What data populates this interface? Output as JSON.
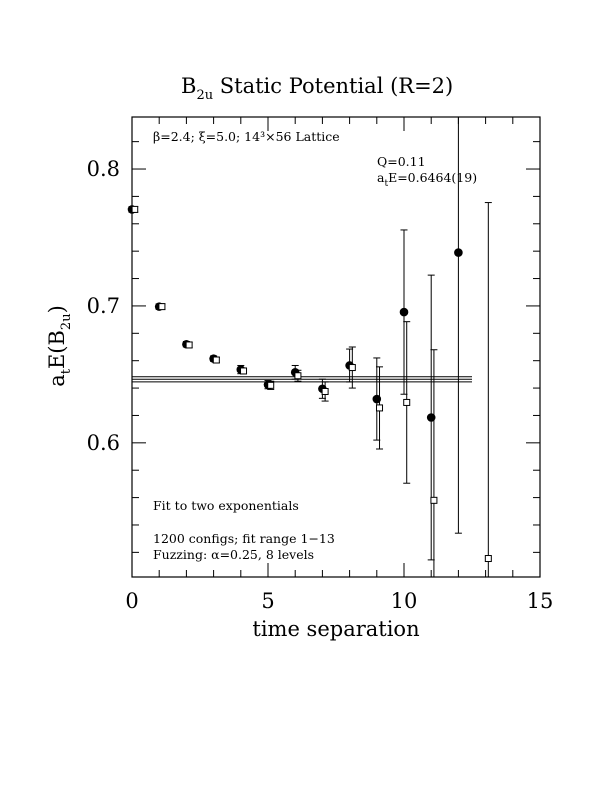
{
  "chart_data": {
    "type": "scatter",
    "title": "B₂u Static Potential (R=2)",
    "title_main": "B",
    "title_sub": "2u",
    "title_rest": " Static Potential (R=2)",
    "xlabel": "time separation",
    "ylabel_main": "a",
    "ylabel_sub1": "t",
    "ylabel_mid": "E(B",
    "ylabel_sub2": "2u",
    "ylabel_end": ")",
    "xlim": [
      0,
      15
    ],
    "ylim": [
      0.502,
      0.838
    ],
    "x_ticks": [
      0,
      5,
      10,
      15
    ],
    "y_ticks": [
      0.6,
      0.7,
      0.8
    ],
    "x_tick_labels": [
      "0",
      "5",
      "10",
      "15"
    ],
    "y_tick_labels": [
      "0.6",
      "0.7",
      "0.8"
    ],
    "annotations": {
      "lattice": "β=2.4; ξ=5.0; 14³×56 Lattice",
      "q": "Q=0.11",
      "energy_main": "a",
      "energy_sub": "t",
      "energy_rest": "E=0.6464(19)",
      "fit_method": "Fit to two exponentials",
      "configs": "1200 configs; fit range 1−13",
      "fuzzing": "Fuzzing: α=0.25, 8 levels"
    },
    "series": [
      {
        "marker": "filled-circle",
        "points": [
          {
            "x": 0,
            "y": 0.7705,
            "err": 0.002
          },
          {
            "x": 1,
            "y": 0.6995,
            "err": 0.002
          },
          {
            "x": 2,
            "y": 0.672,
            "err": 0.002
          },
          {
            "x": 3,
            "y": 0.6615,
            "err": 0.002
          },
          {
            "x": 4,
            "y": 0.6535,
            "err": 0.003
          },
          {
            "x": 5,
            "y": 0.6425,
            "err": 0.003
          },
          {
            "x": 6,
            "y": 0.6515,
            "err": 0.005
          },
          {
            "x": 7,
            "y": 0.6395,
            "err": 0.007
          },
          {
            "x": 8,
            "y": 0.6565,
            "err": 0.012
          },
          {
            "x": 9,
            "y": 0.632,
            "err": 0.03
          },
          {
            "x": 10,
            "y": 0.6955,
            "err": 0.06
          },
          {
            "x": 11,
            "y": 0.6185,
            "err": 0.104
          },
          {
            "x": 12,
            "y": 0.739,
            "err": 0.205
          }
        ]
      },
      {
        "marker": "open-square",
        "points": [
          {
            "x": 0.1,
            "y": 0.7705,
            "err": 0.002
          },
          {
            "x": 1.1,
            "y": 0.6995,
            "err": 0.002
          },
          {
            "x": 2.1,
            "y": 0.6715,
            "err": 0.002
          },
          {
            "x": 3.1,
            "y": 0.6605,
            "err": 0.002
          },
          {
            "x": 4.1,
            "y": 0.6525,
            "err": 0.002
          },
          {
            "x": 5.1,
            "y": 0.642,
            "err": 0.003
          },
          {
            "x": 6.1,
            "y": 0.649,
            "err": 0.004
          },
          {
            "x": 7.1,
            "y": 0.6375,
            "err": 0.007
          },
          {
            "x": 8.1,
            "y": 0.655,
            "err": 0.015
          },
          {
            "x": 9.1,
            "y": 0.6255,
            "err": 0.03
          },
          {
            "x": 10.1,
            "y": 0.6295,
            "err": 0.059
          },
          {
            "x": 11.1,
            "y": 0.558,
            "err": 0.11
          },
          {
            "x": 13.1,
            "y": 0.5155,
            "err": 0.26
          }
        ]
      }
    ],
    "fit": {
      "value": 0.6464,
      "error": 0.0019,
      "x_range": [
        0,
        12.5
      ]
    }
  }
}
